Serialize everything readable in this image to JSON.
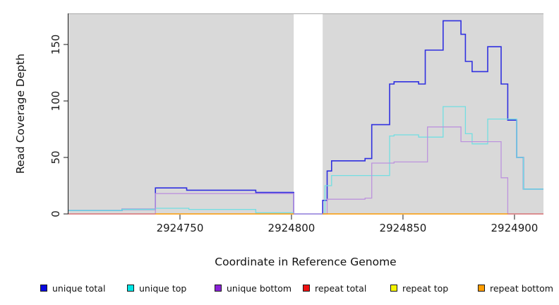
{
  "chart_data": {
    "type": "line",
    "style": "step",
    "title": "",
    "xlabel": "Coordinate in Reference Genome",
    "ylabel": "Read Coverage Depth",
    "xlim": [
      2924700,
      2924913
    ],
    "ylim": [
      0,
      177.5
    ],
    "x_ticks": [
      2924750,
      2924800,
      2924850,
      2924900
    ],
    "x_tick_labels": [
      "2924750",
      "2924800",
      "2924850",
      "2924900"
    ],
    "y_ticks": [
      0,
      50,
      100,
      150
    ],
    "y_tick_labels": [
      "0",
      "50",
      "100",
      "150"
    ],
    "grid": false,
    "legend_position": "bottom",
    "panel_bg": "#d9d9d9",
    "panel_top_border": "#a9a9a9",
    "axis_color": "#1a1a1a",
    "masked_region": {
      "x_start": 2924801,
      "x_end": 2924814,
      "fill": "#ffffff"
    },
    "draw_order": [
      0,
      1,
      2,
      4,
      3,
      5
    ],
    "series": [
      {
        "name": "unique total",
        "line_color": "#3030e0",
        "legend_color": "#0a0ae0",
        "line_width": 1.6,
        "segments": [
          [
            [
              2924700,
              3
            ],
            [
              2924724,
              4
            ],
            [
              2924739,
              23
            ],
            [
              2924753,
              21
            ],
            [
              2924784,
              19
            ],
            [
              2924801,
              0
            ],
            [
              2924814,
              12
            ],
            [
              2924816,
              38
            ],
            [
              2924818,
              47
            ],
            [
              2924833,
              49
            ],
            [
              2924836,
              79
            ],
            [
              2924844,
              115
            ],
            [
              2924846,
              117
            ],
            [
              2924857,
              115
            ],
            [
              2924860,
              145
            ],
            [
              2924868,
              171
            ],
            [
              2924876,
              159
            ],
            [
              2924878,
              135
            ],
            [
              2924881,
              126
            ],
            [
              2924888,
              148
            ],
            [
              2924894,
              115
            ],
            [
              2924897,
              83
            ],
            [
              2924901,
              50
            ],
            [
              2924904,
              22
            ],
            [
              2924913,
              22
            ]
          ]
        ]
      },
      {
        "name": "unique top",
        "line_color": "#72dfe2",
        "legend_color": "#00e5e5",
        "line_width": 1.3,
        "segments": [
          [
            [
              2924700,
              3
            ],
            [
              2924724,
              4
            ],
            [
              2924739,
              5
            ],
            [
              2924754,
              4
            ],
            [
              2924784,
              1
            ],
            [
              2924801,
              0
            ],
            [
              2924815,
              25
            ],
            [
              2924818,
              34
            ],
            [
              2924844,
              69
            ],
            [
              2924846,
              70
            ],
            [
              2924857,
              68
            ],
            [
              2924868,
              95
            ],
            [
              2924878,
              71
            ],
            [
              2924881,
              62
            ],
            [
              2924888,
              84
            ],
            [
              2924901,
              50
            ],
            [
              2924904,
              22
            ],
            [
              2924913,
              22
            ]
          ]
        ]
      },
      {
        "name": "unique bottom",
        "line_color": "#bd93dd",
        "legend_color": "#8a22d8",
        "line_width": 1.3,
        "segments": [
          [
            [
              2924700,
              0
            ],
            [
              2924739,
              18
            ],
            [
              2924801,
              0
            ],
            [
              2924816,
              13
            ],
            [
              2924833,
              14
            ],
            [
              2924836,
              45
            ],
            [
              2924846,
              46
            ],
            [
              2924861,
              77
            ],
            [
              2924876,
              64
            ],
            [
              2924894,
              32
            ],
            [
              2924897,
              0
            ],
            [
              2924913,
              0
            ]
          ]
        ]
      },
      {
        "name": "repeat total",
        "line_color": "#d65f80",
        "legend_color": "#ee1111",
        "line_width": 1.3,
        "segments": [
          [
            [
              2924700,
              0
            ],
            [
              2924801,
              0
            ]
          ],
          [
            [
              2924814,
              0
            ],
            [
              2924913,
              0
            ]
          ]
        ]
      },
      {
        "name": "repeat top",
        "line_color": "#f2f200",
        "legend_color": "#f5f500",
        "line_width": 1.3,
        "segments": [
          [
            [
              2924700,
              0
            ],
            [
              2924801,
              0
            ]
          ],
          [
            [
              2924814,
              0
            ],
            [
              2924913,
              0
            ]
          ]
        ]
      },
      {
        "name": "repeat bottom",
        "line_color": "#ff9d00",
        "legend_color": "#ff9d00",
        "line_width": 1.3,
        "segments": [
          [
            [
              2924739,
              0
            ],
            [
              2924801,
              0
            ]
          ],
          [
            [
              2924814,
              0
            ],
            [
              2924897,
              0
            ]
          ]
        ]
      }
    ]
  }
}
